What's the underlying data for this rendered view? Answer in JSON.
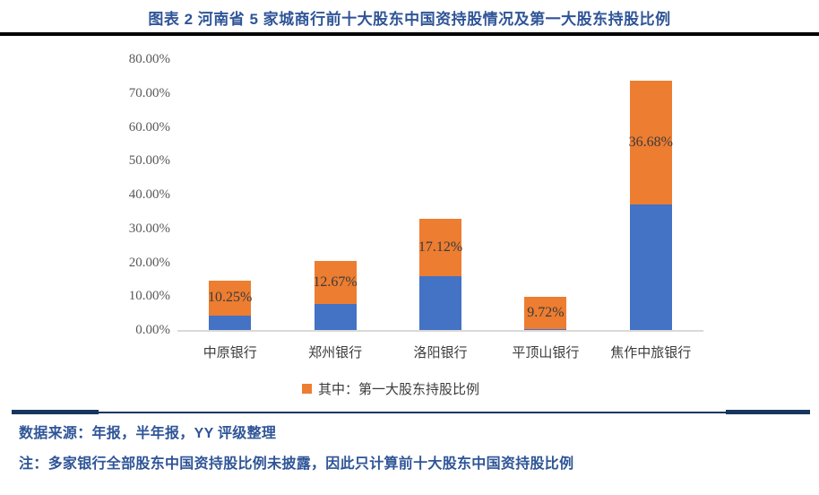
{
  "title": "图表 2 河南省 5 家城商行前十大股东中国资持股情况及第一大股东持股比例",
  "chart_data": {
    "type": "bar",
    "stacked": true,
    "title": "图表 2 河南省 5 家城商行前十大股东中国资持股情况及第一大股东持股比例",
    "categories": [
      "中原银行",
      "郑州银行",
      "洛阳银行",
      "平顶山银行",
      "焦作中旅银行"
    ],
    "series": [
      {
        "name": "",
        "legend_visible": false,
        "color": "#4472C4",
        "values": [
          4.3,
          7.7,
          15.8,
          0.2,
          37.0
        ]
      },
      {
        "name": "其中：第一大股东持股比例",
        "legend_visible": true,
        "color": "#ED7D31",
        "values": [
          10.25,
          12.67,
          17.12,
          9.72,
          36.68
        ],
        "data_labels": [
          "10.25%",
          "12.67%",
          "17.12%",
          "9.72%",
          "36.68%"
        ]
      }
    ],
    "xlabel": "",
    "ylabel": "",
    "ylim": [
      0,
      80
    ],
    "ytick_labels": [
      "80.00%",
      "70.00%",
      "60.00%",
      "50.00%",
      "40.00%",
      "30.00%",
      "20.00%",
      "10.00%",
      "0.00%"
    ],
    "grid": false,
    "legend": {
      "position": "bottom",
      "label": "其中：第一大股东持股比例",
      "marker_color": "#ED7D31"
    }
  },
  "footer": {
    "source": "数据来源：年报，半年报，YY 评级整理",
    "note": "注：多家银行全部股东中国资持股比例未披露，因此只计算前十大股东中国资持股比例"
  },
  "colors": {
    "title": "#2F5597",
    "top_rule": "#000000",
    "bar_blue": "#4472C4",
    "bar_orange": "#ED7D31",
    "axis_text": "#595959",
    "baseline": "#D9D9D9",
    "divider": "#17365D",
    "footer_text": "#2F5597"
  }
}
